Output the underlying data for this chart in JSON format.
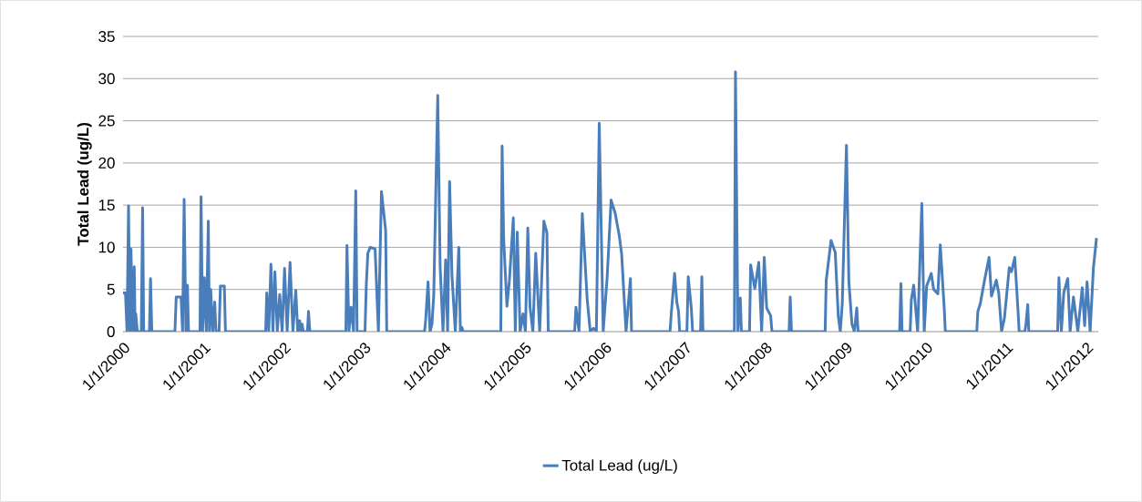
{
  "chart_data": {
    "type": "line",
    "ylabel": "Total Lead (ug/L)",
    "legend": "bottom",
    "grid": "y",
    "xlim": [
      "2000-01-01",
      "2012-02-25"
    ],
    "ylim": [
      0,
      35
    ],
    "yticks": [
      0,
      5,
      10,
      15,
      20,
      25,
      30,
      35
    ],
    "xticks": [
      {
        "value": "2000-01-01",
        "label": "1/1/2000"
      },
      {
        "value": "2001-01-01",
        "label": "1/1/2001"
      },
      {
        "value": "2002-01-01",
        "label": "1/1/2002"
      },
      {
        "value": "2003-01-01",
        "label": "1/1/2003"
      },
      {
        "value": "2004-01-01",
        "label": "1/1/2004"
      },
      {
        "value": "2005-01-01",
        "label": "1/1/2005"
      },
      {
        "value": "2006-01-01",
        "label": "1/1/2006"
      },
      {
        "value": "2007-01-01",
        "label": "1/1/2007"
      },
      {
        "value": "2008-01-01",
        "label": "1/1/2008"
      },
      {
        "value": "2009-01-01",
        "label": "1/1/2009"
      },
      {
        "value": "2010-01-01",
        "label": "1/1/2010"
      },
      {
        "value": "2011-01-01",
        "label": "1/1/2011"
      },
      {
        "value": "2012-01-01",
        "label": "1/1/2012"
      }
    ],
    "x": [
      "2000-01-01",
      "2000-01-12",
      "2000-01-19",
      "2000-01-26",
      "2000-02-01",
      "2000-02-06",
      "2000-02-14",
      "2000-02-21",
      "2000-02-25",
      "2000-02-28",
      "2000-03-06",
      "2000-03-24",
      "2000-03-30",
      "2000-04-04",
      "2000-04-30",
      "2000-05-05",
      "2000-05-11",
      "2000-08-24",
      "2000-08-30",
      "2000-09-21",
      "2000-09-28",
      "2000-10-05",
      "2000-10-13",
      "2000-10-20",
      "2000-10-25",
      "2000-12-16",
      "2000-12-21",
      "2000-12-28",
      "2001-01-05",
      "2001-01-14",
      "2001-01-23",
      "2001-01-28",
      "2001-02-03",
      "2001-02-12",
      "2001-02-21",
      "2001-02-27",
      "2001-03-13",
      "2001-03-19",
      "2001-04-06",
      "2001-04-11",
      "2001-10-11",
      "2001-10-16",
      "2001-10-25",
      "2001-11-04",
      "2001-11-13",
      "2001-11-22",
      "2001-12-03",
      "2001-12-14",
      "2001-12-25",
      "2002-01-05",
      "2002-01-17",
      "2002-01-30",
      "2002-02-12",
      "2002-02-25",
      "2002-03-06",
      "2002-03-15",
      "2002-03-20",
      "2002-03-26",
      "2002-03-31",
      "2002-04-19",
      "2002-04-24",
      "2002-04-30",
      "2002-10-11",
      "2002-10-16",
      "2002-10-25",
      "2002-11-04",
      "2002-11-15",
      "2002-11-25",
      "2002-12-01",
      "2003-01-06",
      "2003-01-12",
      "2003-01-19",
      "2003-01-30",
      "2003-02-21",
      "2003-03-08",
      "2003-03-22",
      "2003-04-10",
      "2003-04-15",
      "2003-10-04",
      "2003-10-09",
      "2003-10-20",
      "2003-10-29",
      "2003-11-07",
      "2003-11-15",
      "2003-12-03",
      "2003-12-14",
      "2003-12-27",
      "2004-01-08",
      "2004-01-17",
      "2004-01-26",
      "2004-02-06",
      "2004-02-21",
      "2004-03-08",
      "2004-03-15",
      "2004-03-22",
      "2004-03-28",
      "2004-09-15",
      "2004-09-21",
      "2004-09-28",
      "2004-10-13",
      "2004-10-24",
      "2004-11-11",
      "2004-11-20",
      "2004-11-29",
      "2004-12-12",
      "2004-12-25",
      "2005-01-05",
      "2005-01-16",
      "2005-01-26",
      "2005-02-08",
      "2005-02-21",
      "2005-03-11",
      "2005-03-30",
      "2005-04-13",
      "2005-04-19",
      "2005-08-17",
      "2005-08-23",
      "2005-09-06",
      "2005-09-21",
      "2005-10-13",
      "2005-10-27",
      "2005-11-11",
      "2005-11-24",
      "2005-12-07",
      "2005-12-25",
      "2006-01-12",
      "2006-01-30",
      "2006-02-17",
      "2006-03-08",
      "2006-03-19",
      "2006-04-08",
      "2006-04-28",
      "2006-05-03",
      "2006-10-25",
      "2006-10-31",
      "2006-11-15",
      "2006-11-25",
      "2006-12-03",
      "2006-12-08",
      "2007-01-10",
      "2007-01-16",
      "2007-01-30",
      "2007-02-05",
      "2007-03-13",
      "2007-03-19",
      "2007-03-24",
      "2007-08-14",
      "2007-08-19",
      "2007-08-30",
      "2007-09-10",
      "2007-09-15",
      "2007-10-22",
      "2007-10-27",
      "2007-11-15",
      "2007-12-03",
      "2007-12-16",
      "2007-12-28",
      "2008-01-08",
      "2008-01-26",
      "2008-02-01",
      "2008-04-19",
      "2008-04-24",
      "2008-04-30",
      "2008-09-30",
      "2008-10-05",
      "2008-10-27",
      "2008-11-15",
      "2008-11-29",
      "2008-12-08",
      "2008-12-17",
      "2009-01-05",
      "2009-01-16",
      "2009-01-30",
      "2009-02-10",
      "2009-02-21",
      "2009-02-27",
      "2009-09-04",
      "2009-09-10",
      "2009-09-15",
      "2009-10-22",
      "2009-10-27",
      "2009-11-07",
      "2009-11-25",
      "2009-12-14",
      "2009-12-25",
      "2010-01-05",
      "2010-01-26",
      "2010-02-06",
      "2010-02-25",
      "2010-03-08",
      "2010-03-26",
      "2010-03-31",
      "2010-08-21",
      "2010-08-26",
      "2010-09-06",
      "2010-09-24",
      "2010-10-16",
      "2010-10-27",
      "2010-11-18",
      "2010-11-29",
      "2010-12-12",
      "2010-12-25",
      "2011-01-16",
      "2011-01-26",
      "2011-02-10",
      "2011-02-25",
      "2011-03-02",
      "2011-03-28",
      "2011-04-02",
      "2011-04-10",
      "2011-04-15",
      "2011-08-24",
      "2011-08-30",
      "2011-09-10",
      "2011-09-21",
      "2011-10-09",
      "2011-10-20",
      "2011-11-04",
      "2011-11-24",
      "2011-12-14",
      "2011-12-25",
      "2012-01-05",
      "2012-01-19",
      "2012-02-03",
      "2012-02-17"
    ],
    "series": [
      {
        "name": "Total Lead (ug/L)",
        "color": "#4a7ebb",
        "values": [
          4.6,
          4.6,
          0,
          14.9,
          0,
          9.8,
          0,
          7.7,
          0,
          2.1,
          0,
          0,
          14.7,
          0,
          0,
          6.3,
          0,
          0,
          4.1,
          4.1,
          0,
          15.7,
          0,
          5.5,
          0,
          0,
          16.0,
          0,
          6.4,
          0,
          13.1,
          0,
          5.0,
          0,
          3.5,
          0,
          0,
          5.4,
          5.4,
          0,
          0,
          4.6,
          0,
          8.0,
          0,
          7.1,
          0,
          4.4,
          0,
          7.5,
          0,
          8.2,
          0,
          4.9,
          0,
          1.3,
          0,
          0.9,
          0,
          0,
          2.4,
          0,
          0,
          10.2,
          0,
          2.9,
          0,
          16.7,
          0,
          0,
          5.6,
          9.3,
          10.0,
          9.8,
          0,
          16.6,
          12.0,
          0,
          0,
          1.3,
          5.9,
          0,
          0.9,
          4.4,
          28.0,
          7.7,
          0,
          8.5,
          0,
          17.8,
          6.6,
          0,
          10.0,
          0,
          0.5,
          0,
          0,
          22.0,
          11.1,
          3.0,
          6.0,
          13.5,
          0,
          11.8,
          0,
          2.1,
          0,
          12.3,
          2.9,
          0,
          9.3,
          0,
          13.1,
          11.7,
          0,
          0,
          2.9,
          0,
          14.0,
          3.9,
          0,
          0.4,
          0,
          24.7,
          0,
          6.4,
          15.6,
          14.1,
          11.4,
          9.2,
          0,
          6.3,
          0,
          0,
          2.2,
          6.9,
          3.5,
          2.4,
          0,
          0,
          6.5,
          2.8,
          0,
          0,
          6.5,
          0,
          0,
          30.8,
          0,
          4.0,
          0,
          0,
          7.9,
          5.1,
          8.2,
          0,
          8.8,
          2.8,
          1.9,
          0,
          0,
          4.1,
          0,
          0,
          6.1,
          10.8,
          9.4,
          1.8,
          0,
          3.3,
          22.1,
          5.9,
          0.9,
          0,
          2.8,
          0,
          0,
          5.7,
          0,
          0,
          3.7,
          5.5,
          0,
          15.2,
          0,
          5.4,
          6.9,
          5.0,
          4.5,
          10.3,
          2.8,
          0,
          0,
          2.4,
          3.3,
          5.9,
          8.8,
          4.2,
          6.1,
          4.6,
          0,
          1.6,
          7.6,
          7.1,
          8.8,
          2.4,
          0,
          0,
          0.9,
          3.2,
          0,
          0,
          6.4,
          0,
          4.6,
          6.3,
          0,
          4.1,
          0,
          5.2,
          0.7,
          5.9,
          0,
          7.6,
          11.1
        ]
      }
    ]
  }
}
